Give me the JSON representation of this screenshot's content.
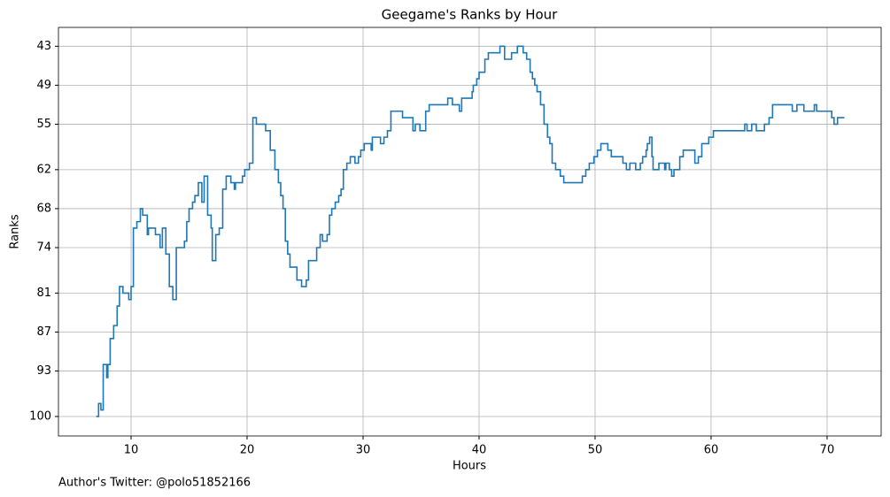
{
  "chart_data": {
    "type": "line",
    "step": "post",
    "title": "Geegame's Ranks by Hour",
    "xlabel": "Hours",
    "ylabel": "Ranks",
    "annotation": "Author's Twitter: @polo51852166",
    "color": "#1f77b4",
    "grid": true,
    "xlim": [
      3.74,
      74.66
    ],
    "xticks": [
      10,
      20,
      30,
      40,
      50,
      60,
      70
    ],
    "ylim": [
      103,
      40.1
    ],
    "yticks": [
      43,
      49,
      55,
      62,
      68,
      74,
      81,
      87,
      93,
      100
    ],
    "x": [
      7.0,
      7.2,
      7.4,
      7.6,
      7.9,
      8.0,
      8.2,
      8.5,
      8.8,
      9.0,
      9.3,
      9.8,
      10.0,
      10.2,
      10.5,
      10.8,
      11.0,
      11.4,
      11.5,
      12.1,
      12.5,
      12.7,
      13.0,
      13.3,
      13.6,
      13.9,
      14.6,
      14.8,
      15.0,
      15.3,
      15.5,
      15.8,
      16.1,
      16.3,
      16.6,
      16.9,
      17.0,
      17.3,
      17.6,
      17.9,
      18.2,
      18.6,
      18.9,
      19.0,
      19.6,
      19.8,
      20.2,
      20.5,
      20.8,
      21.6,
      22.0,
      22.4,
      22.7,
      22.9,
      23.1,
      23.3,
      23.5,
      23.7,
      24.3,
      24.7,
      25.1,
      25.3,
      26.0,
      26.3,
      26.5,
      26.9,
      27.1,
      27.3,
      27.6,
      27.9,
      28.1,
      28.3,
      28.6,
      28.9,
      29.3,
      29.6,
      29.8,
      30.1,
      30.7,
      30.8,
      31.5,
      31.8,
      32.1,
      32.4,
      33.4,
      34.3,
      34.5,
      34.9,
      35.4,
      35.7,
      37.3,
      37.7,
      38.3,
      38.5,
      39.4,
      39.5,
      39.8,
      40.0,
      40.5,
      40.8,
      41.8,
      42.2,
      42.8,
      43.3,
      43.8,
      44.1,
      44.4,
      44.6,
      44.8,
      45.0,
      45.3,
      45.6,
      45.9,
      46.1,
      46.3,
      46.6,
      47.0,
      47.3,
      48.9,
      49.2,
      49.5,
      49.9,
      50.2,
      50.5,
      51.1,
      51.4,
      52.4,
      52.7,
      53.0,
      53.5,
      53.9,
      54.1,
      54.4,
      54.5,
      54.7,
      54.9,
      55.0,
      55.5,
      56.0,
      56.1,
      56.4,
      56.6,
      56.8,
      57.3,
      57.6,
      58.6,
      58.9,
      59.2,
      59.8,
      60.2,
      62.9,
      63.1,
      63.5,
      63.9,
      64.6,
      65.0,
      65.3,
      67.0,
      67.4,
      68.0,
      68.9,
      69.1,
      70.4,
      70.6,
      70.9,
      71.5
    ],
    "values": [
      100,
      98,
      99,
      92,
      94,
      92,
      88,
      86,
      83,
      80,
      81,
      82,
      80,
      71,
      70,
      68,
      69,
      72,
      71,
      72,
      74,
      71,
      75,
      80,
      82,
      74,
      73,
      70,
      68,
      67,
      66,
      64,
      67,
      63,
      69,
      71,
      76,
      72,
      71,
      65,
      63,
      64,
      65,
      64,
      63,
      62,
      61,
      54,
      55,
      56,
      59,
      62,
      64,
      66,
      68,
      73,
      75,
      77,
      79,
      80,
      79,
      76,
      74,
      72,
      73,
      72,
      69,
      68,
      67,
      66,
      65,
      62,
      61,
      60,
      61,
      60,
      59,
      58,
      59,
      57,
      58,
      57,
      56,
      53,
      54,
      56,
      55,
      56,
      53,
      52,
      51,
      52,
      53,
      51,
      50,
      49,
      48,
      47,
      45,
      44,
      43,
      45,
      44,
      43,
      44,
      45,
      47,
      48,
      49,
      50,
      52,
      55,
      57,
      58,
      61,
      62,
      63,
      64,
      63,
      62,
      61,
      60,
      59,
      58,
      59,
      60,
      61,
      62,
      61,
      62,
      61,
      60,
      59,
      58,
      57,
      60,
      62,
      61,
      62,
      61,
      62,
      63,
      62,
      60,
      59,
      61,
      60,
      58,
      57,
      56,
      55,
      56,
      55,
      56,
      55,
      54,
      52,
      53,
      52,
      53,
      52,
      53,
      54,
      55,
      54,
      54
    ]
  }
}
